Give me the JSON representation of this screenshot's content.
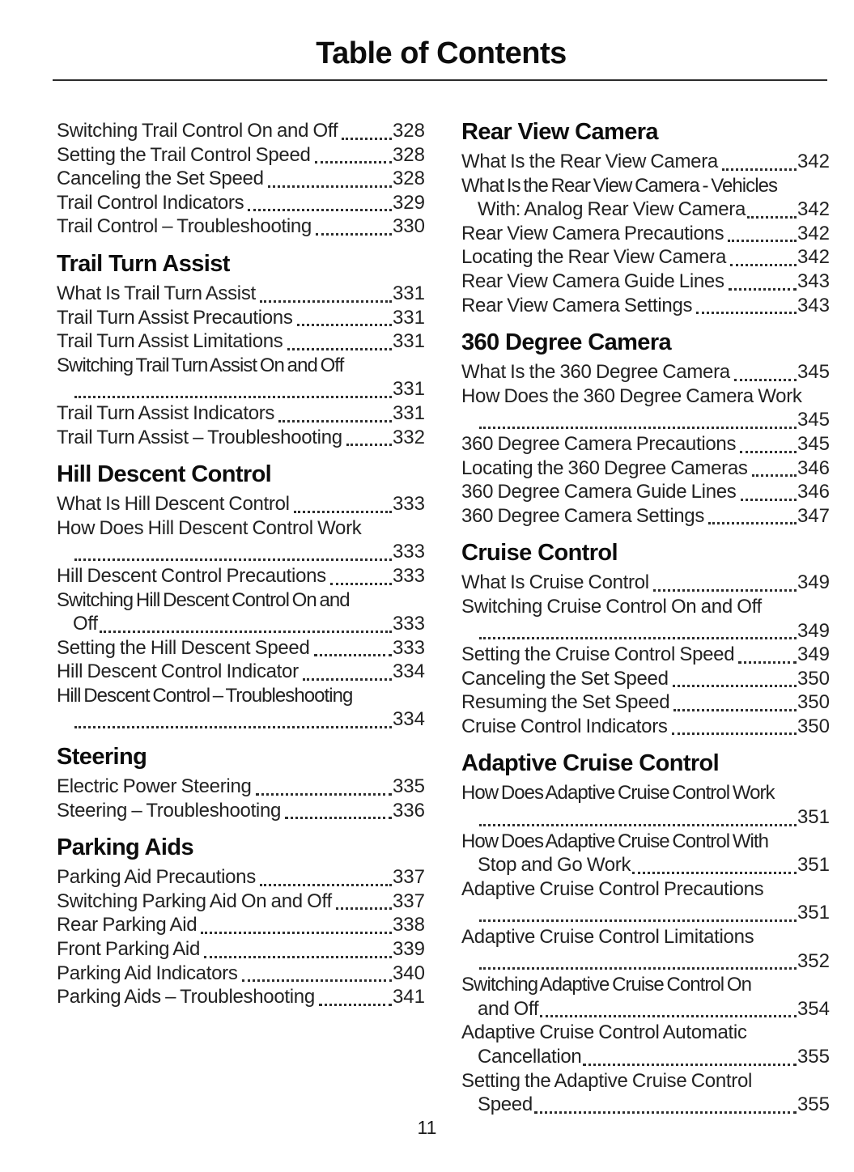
{
  "title": "Table of Contents",
  "page_number": "11",
  "colors": {
    "text": "#222222",
    "heading": "#0d0d0d",
    "rule": "#2b2b2b"
  },
  "columns": {
    "left": [
      {
        "heading": null,
        "entries": [
          {
            "lines": [
              {
                "text": "Switching Trail Control On and Off",
                "page": "328"
              }
            ]
          },
          {
            "lines": [
              {
                "text": "Setting the Trail Control Speed",
                "page": "328"
              }
            ]
          },
          {
            "lines": [
              {
                "text": "Canceling the Set Speed",
                "page": "328"
              }
            ]
          },
          {
            "lines": [
              {
                "text": "Trail Control Indicators",
                "page": "329"
              }
            ]
          },
          {
            "lines": [
              {
                "text": "Trail Control – Troubleshooting",
                "page": "330"
              }
            ]
          }
        ]
      },
      {
        "heading": "Trail Turn Assist",
        "entries": [
          {
            "lines": [
              {
                "text": "What Is Trail Turn Assist",
                "page": "331"
              }
            ]
          },
          {
            "lines": [
              {
                "text": "Trail Turn Assist Precautions",
                "page": "331"
              }
            ]
          },
          {
            "lines": [
              {
                "text": "Trail Turn Assist Limitations",
                "page": "331"
              }
            ]
          },
          {
            "lines": [
              {
                "text": "Switching Trail Turn Assist On and Off"
              },
              {
                "text": "",
                "page": "331"
              }
            ]
          },
          {
            "lines": [
              {
                "text": "Trail Turn Assist Indicators",
                "page": "331"
              }
            ]
          },
          {
            "lines": [
              {
                "text": "Trail Turn Assist – Troubleshooting",
                "page": "332"
              }
            ]
          }
        ]
      },
      {
        "heading": "Hill Descent Control",
        "entries": [
          {
            "lines": [
              {
                "text": "What Is Hill Descent Control",
                "page": "333"
              }
            ]
          },
          {
            "lines": [
              {
                "text": "How Does Hill Descent Control Work"
              },
              {
                "text": "",
                "page": "333"
              }
            ]
          },
          {
            "lines": [
              {
                "text": "Hill Descent Control Precautions",
                "page": "333"
              }
            ]
          },
          {
            "lines": [
              {
                "text": "Switching Hill Descent Control On and"
              },
              {
                "text": "Off",
                "page": "333"
              }
            ]
          },
          {
            "lines": [
              {
                "text": "Setting the Hill Descent Speed",
                "page": "333"
              }
            ]
          },
          {
            "lines": [
              {
                "text": "Hill Descent Control Indicator",
                "page": "334"
              }
            ]
          },
          {
            "lines": [
              {
                "text": "Hill Descent Control – Troubleshooting"
              },
              {
                "text": "",
                "page": "334"
              }
            ]
          }
        ]
      },
      {
        "heading": "Steering",
        "entries": [
          {
            "lines": [
              {
                "text": "Electric Power Steering",
                "page": "335"
              }
            ]
          },
          {
            "lines": [
              {
                "text": "Steering – Troubleshooting",
                "page": "336"
              }
            ]
          }
        ]
      },
      {
        "heading": "Parking Aids",
        "entries": [
          {
            "lines": [
              {
                "text": "Parking Aid Precautions",
                "page": "337"
              }
            ]
          },
          {
            "lines": [
              {
                "text": "Switching Parking Aid On and Off",
                "page": "337"
              }
            ]
          },
          {
            "lines": [
              {
                "text": "Rear Parking Aid",
                "page": "338"
              }
            ]
          },
          {
            "lines": [
              {
                "text": "Front Parking Aid",
                "page": "339"
              }
            ]
          },
          {
            "lines": [
              {
                "text": "Parking Aid Indicators",
                "page": "340"
              }
            ]
          },
          {
            "lines": [
              {
                "text": "Parking Aids – Troubleshooting",
                "page": "341"
              }
            ]
          }
        ]
      }
    ],
    "right": [
      {
        "heading": "Rear View Camera",
        "entries": [
          {
            "lines": [
              {
                "text": "What Is the Rear View Camera",
                "page": "342"
              }
            ]
          },
          {
            "lines": [
              {
                "text": "What Is the Rear View Camera - Vehicles"
              },
              {
                "text": "With: Analog Rear View Camera",
                "page": "342"
              }
            ]
          },
          {
            "lines": [
              {
                "text": "Rear View Camera Precautions",
                "page": "342"
              }
            ]
          },
          {
            "lines": [
              {
                "text": "Locating the Rear View Camera",
                "page": "342"
              }
            ]
          },
          {
            "lines": [
              {
                "text": "Rear View Camera Guide Lines",
                "page": "343"
              }
            ]
          },
          {
            "lines": [
              {
                "text": "Rear View Camera Settings",
                "page": "343"
              }
            ]
          }
        ]
      },
      {
        "heading": "360 Degree Camera",
        "entries": [
          {
            "lines": [
              {
                "text": "What Is the 360 Degree Camera",
                "page": "345"
              }
            ]
          },
          {
            "lines": [
              {
                "text": "How Does the 360 Degree Camera Work"
              },
              {
                "text": "",
                "page": "345"
              }
            ]
          },
          {
            "lines": [
              {
                "text": "360 Degree Camera Precautions",
                "page": "345"
              }
            ]
          },
          {
            "lines": [
              {
                "text": "Locating the 360 Degree Cameras",
                "page": "346"
              }
            ]
          },
          {
            "lines": [
              {
                "text": "360 Degree Camera Guide Lines",
                "page": "346"
              }
            ]
          },
          {
            "lines": [
              {
                "text": "360 Degree Camera Settings",
                "page": "347"
              }
            ]
          }
        ]
      },
      {
        "heading": "Cruise Control",
        "entries": [
          {
            "lines": [
              {
                "text": "What Is Cruise Control",
                "page": "349"
              }
            ]
          },
          {
            "lines": [
              {
                "text": "Switching Cruise Control On and Off"
              },
              {
                "text": "",
                "page": "349"
              }
            ]
          },
          {
            "lines": [
              {
                "text": "Setting the Cruise Control Speed",
                "page": "349"
              }
            ]
          },
          {
            "lines": [
              {
                "text": "Canceling the Set Speed",
                "page": "350"
              }
            ]
          },
          {
            "lines": [
              {
                "text": "Resuming the Set Speed",
                "page": "350"
              }
            ]
          },
          {
            "lines": [
              {
                "text": "Cruise Control Indicators",
                "page": "350"
              }
            ]
          }
        ]
      },
      {
        "heading": "Adaptive Cruise Control",
        "entries": [
          {
            "lines": [
              {
                "text": "How Does Adaptive Cruise Control Work"
              },
              {
                "text": "",
                "page": "351"
              }
            ]
          },
          {
            "lines": [
              {
                "text": "How Does Adaptive Cruise Control With"
              },
              {
                "text": "Stop and Go Work",
                "page": "351"
              }
            ]
          },
          {
            "lines": [
              {
                "text": "Adaptive Cruise Control Precautions"
              },
              {
                "text": "",
                "page": "351"
              }
            ]
          },
          {
            "lines": [
              {
                "text": "Adaptive Cruise Control Limitations"
              },
              {
                "text": "",
                "page": "352"
              }
            ]
          },
          {
            "lines": [
              {
                "text": "Switching Adaptive Cruise Control On"
              },
              {
                "text": "and Off",
                "page": "354"
              }
            ]
          },
          {
            "lines": [
              {
                "text": "Adaptive Cruise Control Automatic"
              },
              {
                "text": "Cancellation",
                "page": "355"
              }
            ]
          },
          {
            "lines": [
              {
                "text": "Setting the Adaptive Cruise Control"
              },
              {
                "text": "Speed",
                "page": "355"
              }
            ]
          }
        ]
      }
    ]
  }
}
